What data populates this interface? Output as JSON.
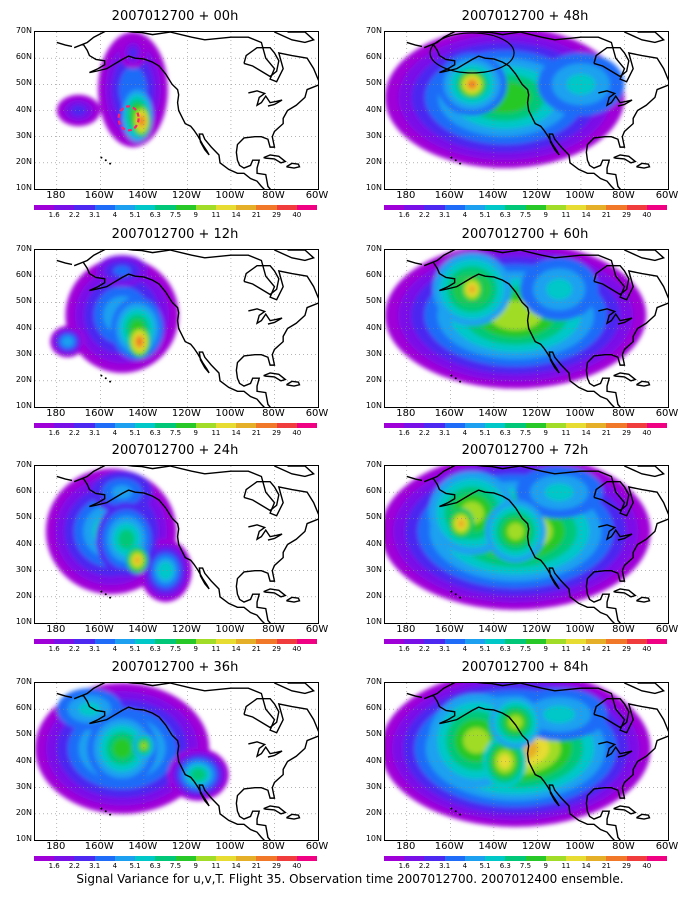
{
  "caption": "Signal Variance for u,v,T. Flight 35. Observation time 2007012700. 2007012400 ensemble.",
  "lat_labels": [
    "70N",
    "60N",
    "50N",
    "40N",
    "30N",
    "20N",
    "10N"
  ],
  "lon_labels": [
    "180",
    "160W",
    "140W",
    "120W",
    "100W",
    "80W",
    "60W"
  ],
  "colorbar": {
    "colors": [
      "#9f00d8",
      "#7a10e8",
      "#4c28f0",
      "#1f6cf8",
      "#1ea0f0",
      "#00c8c8",
      "#00c878",
      "#28c828",
      "#a0dc28",
      "#e6dc32",
      "#e6af28",
      "#f07828",
      "#f03c3c",
      "#f00082"
    ],
    "labels": [
      "1.6",
      "2.2",
      "3.1",
      "4",
      "5.1",
      "6.3",
      "7.5",
      "9",
      "11",
      "14",
      "21",
      "29",
      "40"
    ]
  },
  "panels": [
    {
      "title": "2007012700 + 00h",
      "level": 0
    },
    {
      "title": "2007012700 + 48h",
      "level": 4
    },
    {
      "title": "2007012700 + 12h",
      "level": 1
    },
    {
      "title": "2007012700 + 60h",
      "level": 5
    },
    {
      "title": "2007012700 + 24h",
      "level": 2
    },
    {
      "title": "2007012700 + 72h",
      "level": 6
    },
    {
      "title": "2007012700 + 36h",
      "level": 3
    },
    {
      "title": "2007012700 + 84h",
      "level": 7
    }
  ]
}
